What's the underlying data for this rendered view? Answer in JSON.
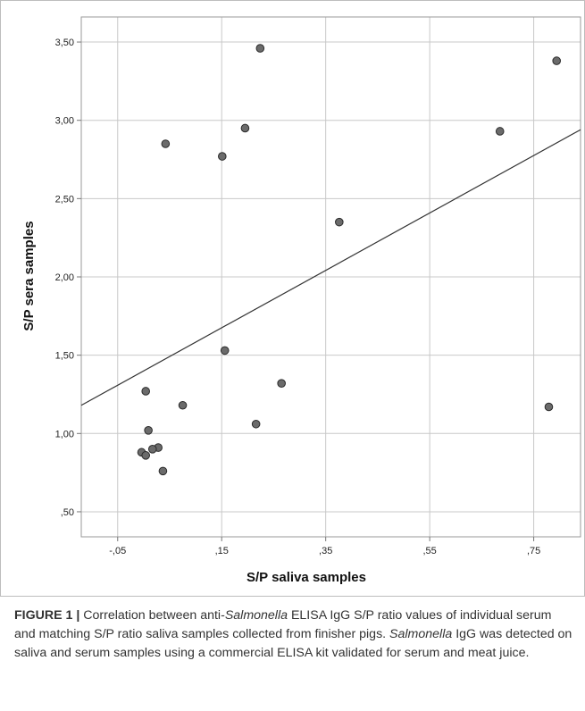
{
  "chart_data": {
    "type": "scatter",
    "xlabel": "S/P saliva samples",
    "ylabel": "S/P sera samples",
    "xlim": [
      -0.12,
      0.84
    ],
    "ylim": [
      0.34,
      3.66
    ],
    "x_ticks": [
      -0.05,
      0.15,
      0.35,
      0.55,
      0.75
    ],
    "x_tick_labels": [
      "-,05",
      ",15",
      ",35",
      ",55",
      ",75"
    ],
    "y_ticks": [
      0.5,
      1.0,
      1.5,
      2.0,
      2.5,
      3.0,
      3.5
    ],
    "y_tick_labels": [
      ",50",
      "1,00",
      "1,50",
      "2,00",
      "2,50",
      "3,00",
      "3,50"
    ],
    "grid": true,
    "points": [
      {
        "x": 0.224,
        "y": 3.46
      },
      {
        "x": 0.794,
        "y": 3.38
      },
      {
        "x": 0.195,
        "y": 2.95
      },
      {
        "x": 0.042,
        "y": 2.85
      },
      {
        "x": 0.151,
        "y": 2.77
      },
      {
        "x": 0.685,
        "y": 2.93
      },
      {
        "x": 0.376,
        "y": 2.35
      },
      {
        "x": 0.156,
        "y": 1.53
      },
      {
        "x": 0.265,
        "y": 1.32
      },
      {
        "x": 0.004,
        "y": 1.27
      },
      {
        "x": 0.075,
        "y": 1.18
      },
      {
        "x": 0.779,
        "y": 1.17
      },
      {
        "x": 0.216,
        "y": 1.06
      },
      {
        "x": 0.009,
        "y": 1.02
      },
      {
        "x": 0.028,
        "y": 0.91
      },
      {
        "x": 0.017,
        "y": 0.9
      },
      {
        "x": -0.004,
        "y": 0.88
      },
      {
        "x": 0.004,
        "y": 0.86
      },
      {
        "x": 0.037,
        "y": 0.76
      }
    ],
    "fit_line": {
      "x": [
        -0.12,
        0.84
      ],
      "y": [
        1.18,
        2.94
      ]
    },
    "colors": {
      "point_fill": "#6b6b6b",
      "point_stroke": "#2a2a2a",
      "grid": "#c8c8c8",
      "line": "#333333"
    }
  },
  "caption": {
    "label": "FIGURE 1 |",
    "text_1": " Correlation between anti-",
    "italic_1": "Salmonella",
    "text_2": " ELISA IgG S/P ratio values of individual serum and matching S/P ratio saliva samples collected from finisher pigs. ",
    "italic_2": "Salmonella",
    "text_3": " IgG was detected on saliva and serum samples using a commercial ELISA kit validated for serum and meat juice."
  }
}
